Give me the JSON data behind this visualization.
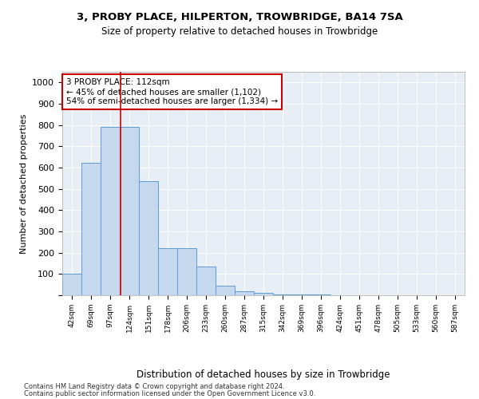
{
  "title1": "3, PROBY PLACE, HILPERTON, TROWBRIDGE, BA14 7SA",
  "title2": "Size of property relative to detached houses in Trowbridge",
  "xlabel": "Distribution of detached houses by size in Trowbridge",
  "ylabel": "Number of detached properties",
  "categories": [
    "42sqm",
    "69sqm",
    "97sqm",
    "124sqm",
    "151sqm",
    "178sqm",
    "206sqm",
    "233sqm",
    "260sqm",
    "287sqm",
    "315sqm",
    "342sqm",
    "369sqm",
    "396sqm",
    "424sqm",
    "451sqm",
    "478sqm",
    "505sqm",
    "533sqm",
    "560sqm",
    "587sqm"
  ],
  "values": [
    102,
    622,
    790,
    790,
    535,
    220,
    220,
    135,
    45,
    18,
    10,
    5,
    3,
    2,
    1,
    1,
    1,
    0,
    0,
    0,
    0
  ],
  "bar_color": "#c5d8ee",
  "bar_edge_color": "#5b9bd5",
  "vline_color": "#cc0000",
  "annotation_text": "3 PROBY PLACE: 112sqm\n← 45% of detached houses are smaller (1,102)\n54% of semi-detached houses are larger (1,334) →",
  "annotation_box_color": "#ffffff",
  "annotation_border_color": "#cc0000",
  "ylim": [
    0,
    1000
  ],
  "yticks": [
    0,
    100,
    200,
    300,
    400,
    500,
    600,
    700,
    800,
    900,
    1000
  ],
  "background_color": "#e8eef5",
  "grid_color": "#ffffff",
  "footer1": "Contains HM Land Registry data © Crown copyright and database right 2024.",
  "footer2": "Contains public sector information licensed under the Open Government Licence v3.0."
}
